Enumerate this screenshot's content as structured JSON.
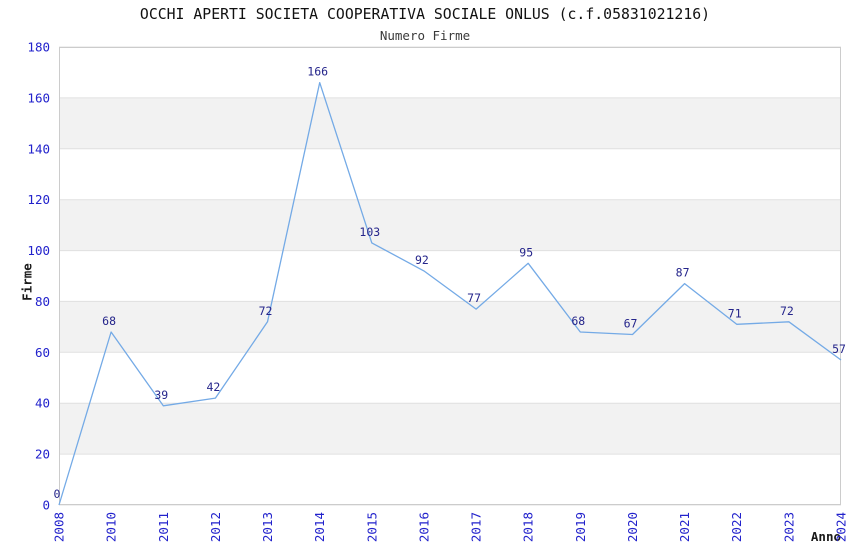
{
  "chart_data": {
    "type": "line",
    "title": "OCCHI APERTI SOCIETA COOPERATIVA SOCIALE ONLUS (c.f.05831021216)",
    "subtitle": "Numero Firme",
    "xlabel": "Anno",
    "ylabel": "Firme",
    "categories": [
      "2008",
      "2010",
      "2011",
      "2012",
      "2013",
      "2014",
      "2015",
      "2016",
      "2017",
      "2018",
      "2019",
      "2020",
      "2021",
      "2022",
      "2023",
      "2024"
    ],
    "values": [
      0,
      68,
      39,
      42,
      72,
      166,
      103,
      92,
      77,
      95,
      68,
      67,
      87,
      71,
      72,
      57
    ],
    "ylim": [
      0,
      180
    ],
    "y_tick_step": 20,
    "y_tick_labels": [
      "0",
      "20",
      "40",
      "60",
      "80",
      "100",
      "120",
      "140",
      "160",
      "180"
    ],
    "grid": true,
    "legend": false,
    "x_tick_rotation": -90,
    "banding": "alternating horizontal gray bands every 20 units, white band at top (180-160)",
    "point_labels_shown": true,
    "colors": {
      "line": "#74aae6",
      "tick_label": "#2222cc",
      "value_label": "#25258b",
      "band": "#f2f2f2",
      "grid_line": "#e0e0e0",
      "plot_border": "#cccccc",
      "title": "#111111",
      "subtitle": "#3a3a3a",
      "axis_title": "#1a1a1a",
      "background": "#ffffff"
    }
  }
}
